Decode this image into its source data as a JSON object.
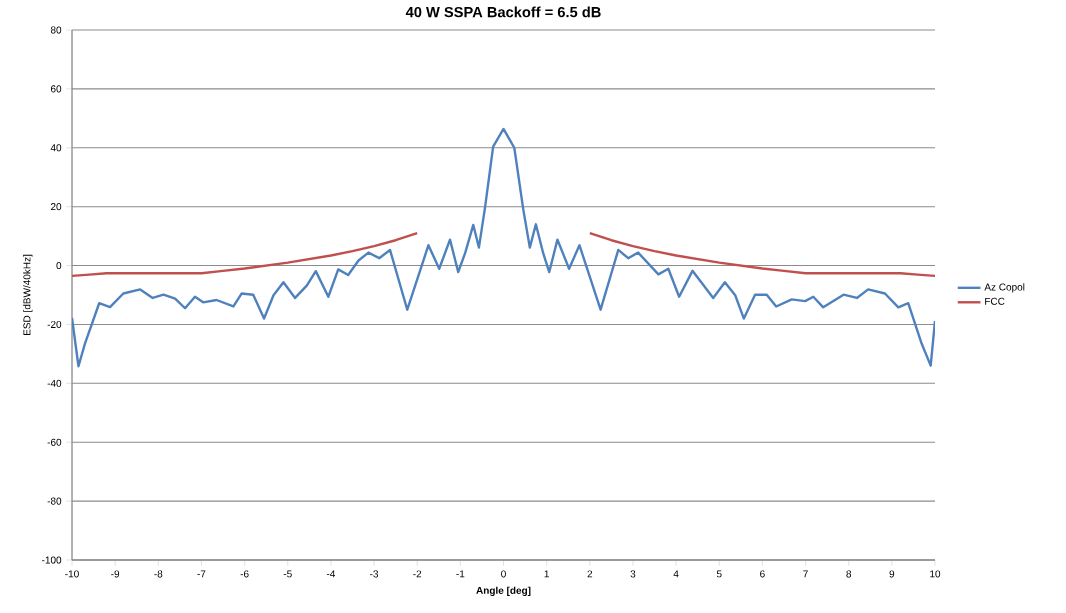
{
  "chart_data": {
    "type": "line",
    "title": "40 W SSPA Backoff  =  6.5 dB",
    "xlabel": "Angle [deg]",
    "ylabel": "ESD [dBW/40kHz]",
    "xlim": [
      -10,
      10
    ],
    "ylim": [
      -100,
      80
    ],
    "xticks": [
      -10,
      -9,
      -8,
      -7,
      -6,
      -5,
      -4,
      -3,
      -2,
      -1,
      0,
      1,
      2,
      3,
      4,
      5,
      6,
      7,
      8,
      9,
      10
    ],
    "yticks": [
      -100,
      -80,
      -60,
      -40,
      -20,
      0,
      20,
      40,
      60,
      80
    ],
    "grid": "y",
    "legend": "right",
    "line_style": "solid",
    "marker": "none",
    "series": [
      {
        "name": "Az Copol",
        "color": "#4f81bd",
        "x": [
          -10,
          -9.85,
          -9.7,
          -9.37,
          -9.12,
          -8.81,
          -8.42,
          -8.13,
          -7.88,
          -7.61,
          -7.38,
          -7.15,
          -6.96,
          -6.65,
          -6.26,
          -6.07,
          -5.8,
          -5.55,
          -5.33,
          -5.1,
          -4.83,
          -4.56,
          -4.35,
          -4.06,
          -3.83,
          -3.6,
          -3.36,
          -3.13,
          -2.88,
          -2.63,
          -2.23,
          -1.74,
          -1.49,
          -1.24,
          -1.05,
          -0.89,
          -0.7,
          -0.57,
          -0.43,
          -0.24,
          0,
          0.25,
          0.46,
          0.61,
          0.75,
          0.92,
          1.06,
          1.25,
          1.52,
          1.76,
          2.25,
          2.66,
          2.89,
          3.12,
          3.59,
          3.82,
          4.07,
          4.38,
          4.86,
          5.13,
          5.37,
          5.57,
          5.83,
          6.1,
          6.32,
          6.68,
          6.99,
          7.18,
          7.41,
          7.88,
          8.19,
          8.45,
          8.84,
          9.15,
          9.38,
          9.69,
          9.9,
          10
        ],
        "values": [
          -17.8,
          -34.2,
          -26.5,
          -12.8,
          -14.1,
          -9.5,
          -8.1,
          -11,
          -9.9,
          -11.2,
          -14.5,
          -10.6,
          -12.5,
          -11.7,
          -13.9,
          -9.5,
          -9.9,
          -18,
          -10.1,
          -5.7,
          -11,
          -6.8,
          -1.9,
          -10.6,
          -1.3,
          -3.2,
          1.7,
          4.4,
          2.5,
          5.3,
          -15,
          6.9,
          -1.1,
          8.8,
          -2.2,
          4.2,
          13.8,
          6.1,
          19.5,
          40.4,
          46.4,
          40,
          18.9,
          6.1,
          14,
          4.2,
          -2.2,
          8.8,
          -1.1,
          6.9,
          -15,
          5.3,
          2.5,
          4.4,
          -3,
          -1.1,
          -10.6,
          -1.8,
          -11,
          -5.7,
          -10.1,
          -18,
          -9.9,
          -9.9,
          -13.9,
          -11.5,
          -12.1,
          -10.6,
          -14.2,
          -9.9,
          -11,
          -8.1,
          -9.5,
          -14.2,
          -12.8,
          -26.5,
          -34,
          -18.8
        ]
      },
      {
        "name": "FCC",
        "color": "#c0504d",
        "x": [
          -10,
          -9.6,
          -9.2,
          -7,
          -6.5,
          -6,
          -5.5,
          -5,
          -4.5,
          -4,
          -3.5,
          -3,
          -2.5,
          -2,
          0,
          2,
          2.5,
          3,
          3.5,
          4,
          4.5,
          5,
          5.5,
          6,
          6.5,
          7,
          9.2,
          9.6,
          10
        ],
        "values": [
          -3.5,
          -3.1,
          -2.6,
          -2.6,
          -1.8,
          -1,
          0,
          1,
          2.2,
          3.4,
          4.9,
          6.6,
          8.6,
          11,
          null,
          11,
          8.6,
          6.6,
          4.9,
          3.4,
          2.2,
          1,
          0,
          -1,
          -1.8,
          -2.6,
          -2.6,
          -3.1,
          -3.5
        ]
      }
    ]
  }
}
